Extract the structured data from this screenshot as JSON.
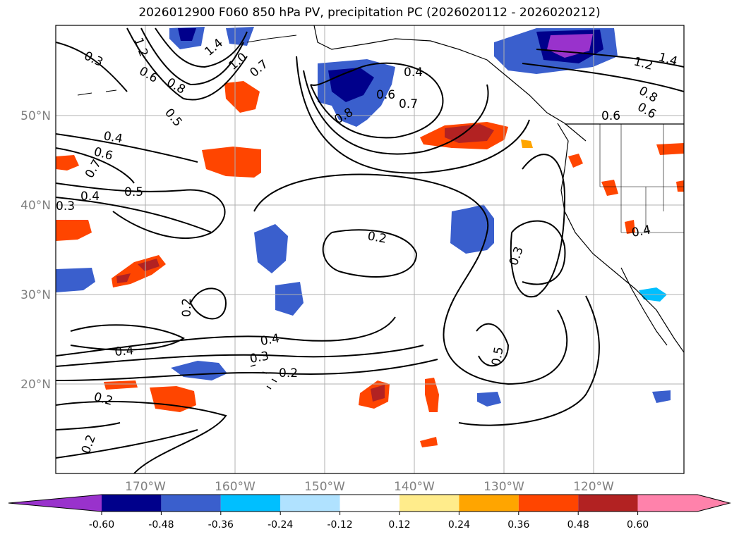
{
  "title": "2026012900 F060 850 hPa PV, precipitation PC (2026020112 - 2026020212)",
  "map": {
    "lat_labels": [
      "50°N",
      "40°N",
      "30°N",
      "20°N"
    ],
    "lon_labels": [
      "170°W",
      "160°W",
      "150°W",
      "140°W",
      "130°W",
      "120°W"
    ],
    "gridlines": true
  },
  "contour_labels": [
    "0.3",
    "1.2",
    "1.4",
    "1.0",
    "0.7",
    "0.6",
    "0.8",
    "0.5",
    "0.4",
    "0.6",
    "0.7",
    "0.4",
    "0.5",
    "0.3",
    "0.4",
    "0.6",
    "0.7",
    "0.8",
    "1.2",
    "1.4",
    "0.8",
    "0.6",
    "0.6",
    "0.2",
    "0.3",
    "0.2",
    "0.4",
    "0.4",
    "0.3",
    "0.2",
    "0.2",
    "0.2",
    "0.5",
    "0.4"
  ],
  "colorbar": {
    "ticks": [
      "-0.60",
      "-0.48",
      "-0.36",
      "-0.24",
      "-0.12",
      "0.12",
      "0.24",
      "0.36",
      "0.48",
      "0.60"
    ],
    "colors": [
      "#9932CC",
      "#00008B",
      "#3A5FCD",
      "#00BFFF",
      "#B0E2FF",
      "#FFFFFF",
      "#FFEC8B",
      "#FFA500",
      "#FF4500",
      "#B22222",
      "#FF82AB"
    ]
  }
}
